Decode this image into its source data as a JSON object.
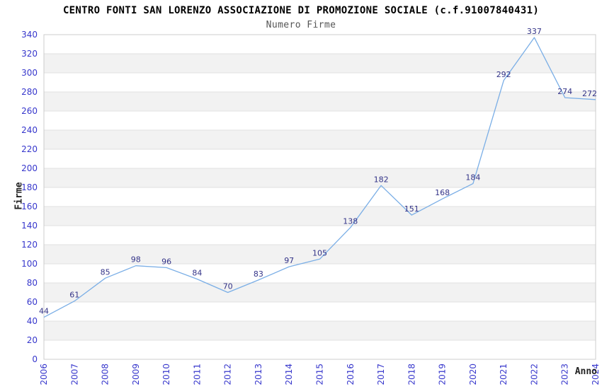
{
  "chart_data": {
    "type": "line",
    "title": "CENTRO FONTI SAN LORENZO ASSOCIAZIONE DI PROMOZIONE SOCIALE (c.f.91007840431)",
    "subtitle": "Numero Firme",
    "xlabel": "Anno",
    "ylabel": "Firme",
    "x": [
      "2006",
      "2007",
      "2008",
      "2009",
      "2010",
      "2011",
      "2012",
      "2013",
      "2014",
      "2015",
      "2016",
      "2017",
      "2018",
      "2019",
      "2020",
      "2021",
      "2022",
      "2023",
      "2024"
    ],
    "series": [
      {
        "name": "Numero Firme",
        "values": [
          44,
          61,
          85,
          98,
          96,
          84,
          70,
          83,
          97,
          105,
          138,
          182,
          151,
          168,
          184,
          292,
          337,
          274,
          272
        ]
      }
    ],
    "ylim": [
      0,
      340
    ],
    "ytick_step": 20,
    "grid": true,
    "alternating_bands": true,
    "legend": "none",
    "data_labels": true,
    "colors": {
      "line": "#7aaee6",
      "data_label": "#333388",
      "tick_label": "#3737cc",
      "band": "#f2f2f2",
      "grid": "#e0e0e0",
      "border": "#cccccc",
      "title": "#000000",
      "subtitle": "#555555",
      "axis_title": "#222222",
      "background": "#ffffff"
    }
  }
}
